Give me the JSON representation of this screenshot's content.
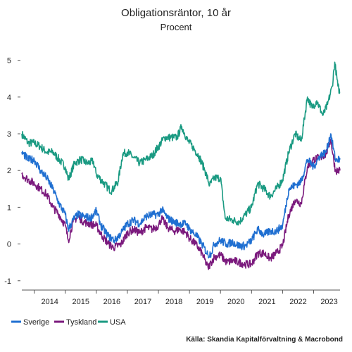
{
  "chart_data": {
    "type": "line",
    "title": "Obligationsräntor, 10 år",
    "subtitle": "Procent",
    "source": "Källa: Skandia Kapitalförvaltning & Macrobond",
    "xlabel": "",
    "ylabel": "",
    "x_ticks": [
      "2014",
      "2015",
      "2016",
      "2017",
      "2018",
      "2019",
      "2020",
      "2021",
      "2022",
      "2023"
    ],
    "y_ticks": [
      -1,
      0,
      1,
      2,
      3,
      4,
      5
    ],
    "xlim": [
      2013.6,
      2023.85
    ],
    "ylim": [
      -1.1,
      5.3
    ],
    "grid": false,
    "legend_position": "bottom-left",
    "series": [
      {
        "name": "Sverige",
        "color": "#1f6fd1",
        "points": [
          [
            2013.6,
            2.5
          ],
          [
            2013.8,
            2.3
          ],
          [
            2014.0,
            2.3
          ],
          [
            2014.2,
            2.0
          ],
          [
            2014.4,
            1.8
          ],
          [
            2014.6,
            1.5
          ],
          [
            2014.8,
            1.1
          ],
          [
            2015.0,
            0.8
          ],
          [
            2015.1,
            0.4
          ],
          [
            2015.25,
            0.65
          ],
          [
            2015.4,
            0.8
          ],
          [
            2015.6,
            0.75
          ],
          [
            2015.8,
            0.7
          ],
          [
            2016.0,
            0.9
          ],
          [
            2016.15,
            0.5
          ],
          [
            2016.4,
            0.2
          ],
          [
            2016.6,
            0.1
          ],
          [
            2016.8,
            0.3
          ],
          [
            2017.0,
            0.55
          ],
          [
            2017.2,
            0.65
          ],
          [
            2017.4,
            0.55
          ],
          [
            2017.6,
            0.75
          ],
          [
            2017.8,
            0.8
          ],
          [
            2018.0,
            0.8
          ],
          [
            2018.1,
            0.95
          ],
          [
            2018.3,
            0.7
          ],
          [
            2018.5,
            0.6
          ],
          [
            2018.7,
            0.55
          ],
          [
            2018.9,
            0.55
          ],
          [
            2019.0,
            0.4
          ],
          [
            2019.2,
            0.25
          ],
          [
            2019.4,
            0.0
          ],
          [
            2019.6,
            -0.3
          ],
          [
            2019.7,
            -0.25
          ],
          [
            2019.8,
            0.0
          ],
          [
            2020.0,
            0.1
          ],
          [
            2020.2,
            0.0
          ],
          [
            2020.4,
            0.05
          ],
          [
            2020.6,
            -0.05
          ],
          [
            2020.8,
            -0.05
          ],
          [
            2021.0,
            0.1
          ],
          [
            2021.2,
            0.4
          ],
          [
            2021.4,
            0.25
          ],
          [
            2021.6,
            0.35
          ],
          [
            2021.8,
            0.35
          ],
          [
            2022.0,
            0.5
          ],
          [
            2022.2,
            1.5
          ],
          [
            2022.4,
            1.6
          ],
          [
            2022.6,
            1.7
          ],
          [
            2022.8,
            2.3
          ],
          [
            2023.0,
            2.1
          ],
          [
            2023.2,
            2.4
          ],
          [
            2023.4,
            2.5
          ],
          [
            2023.55,
            3.0
          ],
          [
            2023.7,
            2.3
          ],
          [
            2023.85,
            2.3
          ]
        ]
      },
      {
        "name": "Tyskland",
        "color": "#7b1a7d",
        "points": [
          [
            2013.6,
            1.9
          ],
          [
            2013.8,
            1.75
          ],
          [
            2014.0,
            1.65
          ],
          [
            2014.2,
            1.5
          ],
          [
            2014.4,
            1.35
          ],
          [
            2014.6,
            1.0
          ],
          [
            2014.8,
            0.8
          ],
          [
            2015.0,
            0.5
          ],
          [
            2015.1,
            0.1
          ],
          [
            2015.25,
            0.6
          ],
          [
            2015.4,
            0.75
          ],
          [
            2015.6,
            0.6
          ],
          [
            2015.8,
            0.55
          ],
          [
            2016.0,
            0.5
          ],
          [
            2016.2,
            0.2
          ],
          [
            2016.4,
            0.0
          ],
          [
            2016.55,
            -0.1
          ],
          [
            2016.8,
            0.0
          ],
          [
            2017.0,
            0.3
          ],
          [
            2017.2,
            0.4
          ],
          [
            2017.4,
            0.3
          ],
          [
            2017.6,
            0.45
          ],
          [
            2017.8,
            0.4
          ],
          [
            2018.0,
            0.5
          ],
          [
            2018.1,
            0.7
          ],
          [
            2018.3,
            0.45
          ],
          [
            2018.5,
            0.35
          ],
          [
            2018.7,
            0.4
          ],
          [
            2018.9,
            0.3
          ],
          [
            2019.0,
            0.15
          ],
          [
            2019.2,
            0.0
          ],
          [
            2019.4,
            -0.25
          ],
          [
            2019.6,
            -0.65
          ],
          [
            2019.7,
            -0.5
          ],
          [
            2019.8,
            -0.35
          ],
          [
            2020.0,
            -0.3
          ],
          [
            2020.2,
            -0.5
          ],
          [
            2020.4,
            -0.45
          ],
          [
            2020.6,
            -0.5
          ],
          [
            2020.8,
            -0.55
          ],
          [
            2021.0,
            -0.55
          ],
          [
            2021.2,
            -0.25
          ],
          [
            2021.4,
            -0.25
          ],
          [
            2021.6,
            -0.4
          ],
          [
            2021.8,
            -0.25
          ],
          [
            2022.0,
            -0.05
          ],
          [
            2022.2,
            0.8
          ],
          [
            2022.4,
            1.2
          ],
          [
            2022.6,
            1.1
          ],
          [
            2022.8,
            2.1
          ],
          [
            2023.0,
            2.3
          ],
          [
            2023.2,
            2.35
          ],
          [
            2023.4,
            2.45
          ],
          [
            2023.55,
            2.85
          ],
          [
            2023.7,
            2.0
          ],
          [
            2023.85,
            2.0
          ]
        ]
      },
      {
        "name": "USA",
        "color": "#1a9a82",
        "points": [
          [
            2013.6,
            3.0
          ],
          [
            2013.8,
            2.75
          ],
          [
            2014.0,
            2.75
          ],
          [
            2014.2,
            2.65
          ],
          [
            2014.4,
            2.5
          ],
          [
            2014.6,
            2.5
          ],
          [
            2014.8,
            2.3
          ],
          [
            2015.0,
            2.1
          ],
          [
            2015.1,
            1.75
          ],
          [
            2015.3,
            2.2
          ],
          [
            2015.5,
            2.3
          ],
          [
            2015.7,
            2.2
          ],
          [
            2015.9,
            2.25
          ],
          [
            2016.0,
            1.9
          ],
          [
            2016.2,
            1.7
          ],
          [
            2016.4,
            1.5
          ],
          [
            2016.5,
            1.45
          ],
          [
            2016.7,
            1.7
          ],
          [
            2016.85,
            2.45
          ],
          [
            2017.0,
            2.5
          ],
          [
            2017.2,
            2.35
          ],
          [
            2017.4,
            2.2
          ],
          [
            2017.6,
            2.3
          ],
          [
            2017.8,
            2.4
          ],
          [
            2018.0,
            2.65
          ],
          [
            2018.2,
            2.9
          ],
          [
            2018.4,
            2.9
          ],
          [
            2018.6,
            2.9
          ],
          [
            2018.75,
            3.2
          ],
          [
            2018.95,
            2.8
          ],
          [
            2019.1,
            2.65
          ],
          [
            2019.3,
            2.4
          ],
          [
            2019.5,
            2.0
          ],
          [
            2019.65,
            1.6
          ],
          [
            2019.8,
            1.8
          ],
          [
            2020.0,
            1.8
          ],
          [
            2020.15,
            0.7
          ],
          [
            2020.4,
            0.65
          ],
          [
            2020.6,
            0.6
          ],
          [
            2020.8,
            0.8
          ],
          [
            2021.0,
            1.0
          ],
          [
            2021.2,
            1.65
          ],
          [
            2021.4,
            1.5
          ],
          [
            2021.6,
            1.3
          ],
          [
            2021.8,
            1.5
          ],
          [
            2022.0,
            1.75
          ],
          [
            2022.2,
            2.5
          ],
          [
            2022.4,
            3.0
          ],
          [
            2022.6,
            2.8
          ],
          [
            2022.8,
            4.0
          ],
          [
            2022.95,
            3.7
          ],
          [
            2023.1,
            3.9
          ],
          [
            2023.3,
            3.5
          ],
          [
            2023.45,
            3.8
          ],
          [
            2023.6,
            4.3
          ],
          [
            2023.68,
            4.95
          ],
          [
            2023.78,
            4.3
          ],
          [
            2023.85,
            4.1
          ]
        ]
      }
    ]
  }
}
